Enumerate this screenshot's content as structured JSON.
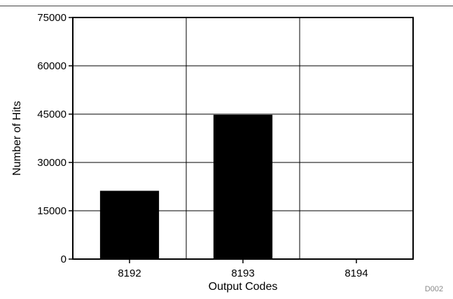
{
  "figure_id": "D002",
  "chart_data": {
    "type": "bar",
    "categories": [
      "8192",
      "8193",
      "8194"
    ],
    "values": [
      21200,
      44800,
      0
    ],
    "title": "",
    "xlabel": "Output Codes",
    "ylabel": "Number of Hits",
    "ylim": [
      0,
      75000
    ],
    "yticks": [
      0,
      15000,
      30000,
      45000,
      60000,
      75000
    ],
    "grid": true,
    "legend": "none",
    "bar_color": "#000000",
    "grid_color": "#000000"
  }
}
